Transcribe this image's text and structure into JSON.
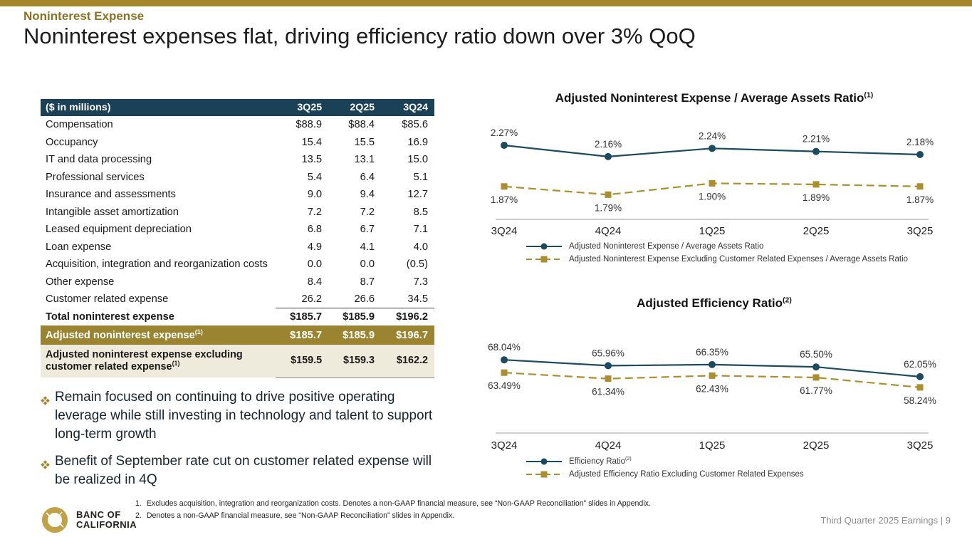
{
  "header": {
    "eyebrow": "Noninterest Expense",
    "title": "Noninterest expenses flat, driving efficiency ratio down over 3% QoQ"
  },
  "colors": {
    "accent_gold": "#A5872B",
    "navy": "#1C4A5E",
    "gold_series": "#AB8E2D",
    "table_header_bg": "#1B4156",
    "gold_row_bg": "#9A8430",
    "beige_row_bg": "#EFEBDC"
  },
  "table": {
    "columns": [
      "($ in millions)",
      "3Q25",
      "2Q25",
      "3Q24"
    ],
    "rows": [
      {
        "label": "Compensation",
        "values": [
          "$88.9",
          "$88.4",
          "$85.6"
        ],
        "style": "normal"
      },
      {
        "label": "Occupancy",
        "values": [
          "15.4",
          "15.5",
          "16.9"
        ],
        "style": "normal"
      },
      {
        "label": "IT and data processing",
        "values": [
          "13.5",
          "13.1",
          "15.0"
        ],
        "style": "normal"
      },
      {
        "label": "Professional services",
        "values": [
          "5.4",
          "6.4",
          "5.1"
        ],
        "style": "normal"
      },
      {
        "label": "Insurance and assessments",
        "values": [
          "9.0",
          "9.4",
          "12.7"
        ],
        "style": "normal"
      },
      {
        "label": "Intangible asset amortization",
        "values": [
          "7.2",
          "7.2",
          "8.5"
        ],
        "style": "normal"
      },
      {
        "label": "Leased equipment depreciation",
        "values": [
          "6.8",
          "6.7",
          "7.1"
        ],
        "style": "normal"
      },
      {
        "label": "Loan expense",
        "values": [
          "4.9",
          "4.1",
          "4.0"
        ],
        "style": "normal"
      },
      {
        "label": "Acquisition, integration and reorganization costs",
        "values": [
          "0.0",
          "0.0",
          "(0.5)"
        ],
        "style": "normal"
      },
      {
        "label": "Other expense",
        "values": [
          "8.4",
          "8.7",
          "7.3"
        ],
        "style": "normal"
      },
      {
        "label": "Customer related expense",
        "values": [
          "26.2",
          "26.6",
          "34.5"
        ],
        "style": "normal"
      },
      {
        "label": "Total noninterest expense",
        "values": [
          "$185.7",
          "$185.9",
          "$196.2"
        ],
        "style": "total"
      },
      {
        "label": "Adjusted noninterest expense",
        "label_sup": "(1)",
        "values": [
          "$185.7",
          "$185.9",
          "$196.7"
        ],
        "style": "gold"
      },
      {
        "label": "Adjusted noninterest expense excluding customer related expense",
        "label_sup": "(1)",
        "values": [
          "$159.5",
          "$159.3",
          "$162.2"
        ],
        "style": "beige"
      }
    ]
  },
  "bullets": [
    "Remain focused on continuing to drive positive operating leverage while still investing in technology and talent to support long-term growth",
    "Benefit of September rate cut on customer related expense will be realized in 4Q"
  ],
  "chart_data": [
    {
      "type": "line",
      "title": "Adjusted Noninterest Expense / Average Assets Ratio",
      "title_sup": "(1)",
      "categories": [
        "3Q24",
        "4Q24",
        "1Q25",
        "2Q25",
        "3Q25"
      ],
      "ylim": [
        1.55,
        2.45
      ],
      "grid": false,
      "legend_position": "bottom-left",
      "series": [
        {
          "name": "Adjusted Noninterest Expense / Average Assets Ratio",
          "values": [
            2.27,
            2.16,
            2.24,
            2.21,
            2.18
          ],
          "labels": [
            "2.27%",
            "2.16%",
            "2.24%",
            "2.21%",
            "2.18%"
          ],
          "color": "#1C4A5E",
          "line_style": "solid",
          "marker": "circle",
          "label_pos": "above"
        },
        {
          "name": "Adjusted Noninterest Expense Excluding Customer Related Expenses / Average Assets Ratio",
          "values": [
            1.87,
            1.79,
            1.9,
            1.89,
            1.87
          ],
          "labels": [
            "1.87%",
            "1.79%",
            "1.90%",
            "1.89%",
            "1.87%"
          ],
          "color": "#AB8E2D",
          "line_style": "dashed",
          "marker": "square",
          "label_pos": "below"
        }
      ]
    },
    {
      "type": "line",
      "title": "Adjusted Efficiency Ratio",
      "title_sup": "(2)",
      "categories": [
        "3Q24",
        "4Q24",
        "1Q25",
        "2Q25",
        "3Q25"
      ],
      "ylim": [
        42,
        80
      ],
      "grid": false,
      "legend_position": "bottom-left",
      "series": [
        {
          "name": "Efficiency Ratio",
          "name_sup": "(2)",
          "values": [
            68.04,
            65.96,
            66.35,
            65.5,
            62.05
          ],
          "labels": [
            "68.04%",
            "65.96%",
            "66.35%",
            "65.50%",
            "62.05%"
          ],
          "color": "#1C4A5E",
          "line_style": "solid",
          "marker": "circle",
          "label_pos": "above"
        },
        {
          "name": "Adjusted Efficiency Ratio Excluding Customer Related Expenses",
          "values": [
            63.49,
            61.34,
            62.43,
            61.77,
            58.24
          ],
          "labels": [
            "63.49%",
            "61.34%",
            "62.43%",
            "61.77%",
            "58.24%"
          ],
          "color": "#AB8E2D",
          "line_style": "dashed",
          "marker": "square",
          "label_pos": "below"
        }
      ]
    }
  ],
  "footnotes": [
    {
      "num": "1.",
      "text": "Excludes acquisition, integration and reorganization costs. Denotes a non-GAAP financial measure, see “Non-GAAP Reconciliation” slides in Appendix."
    },
    {
      "num": "2.",
      "text": "Denotes a non-GAAP financial measure, see “Non-GAAP Reconciliation” slides in Appendix."
    }
  ],
  "footer": {
    "logo_line1": "BANC OF",
    "logo_line2": "CALIFORNIA",
    "page_label": "Third Quarter 2025 Earnings |  9"
  }
}
